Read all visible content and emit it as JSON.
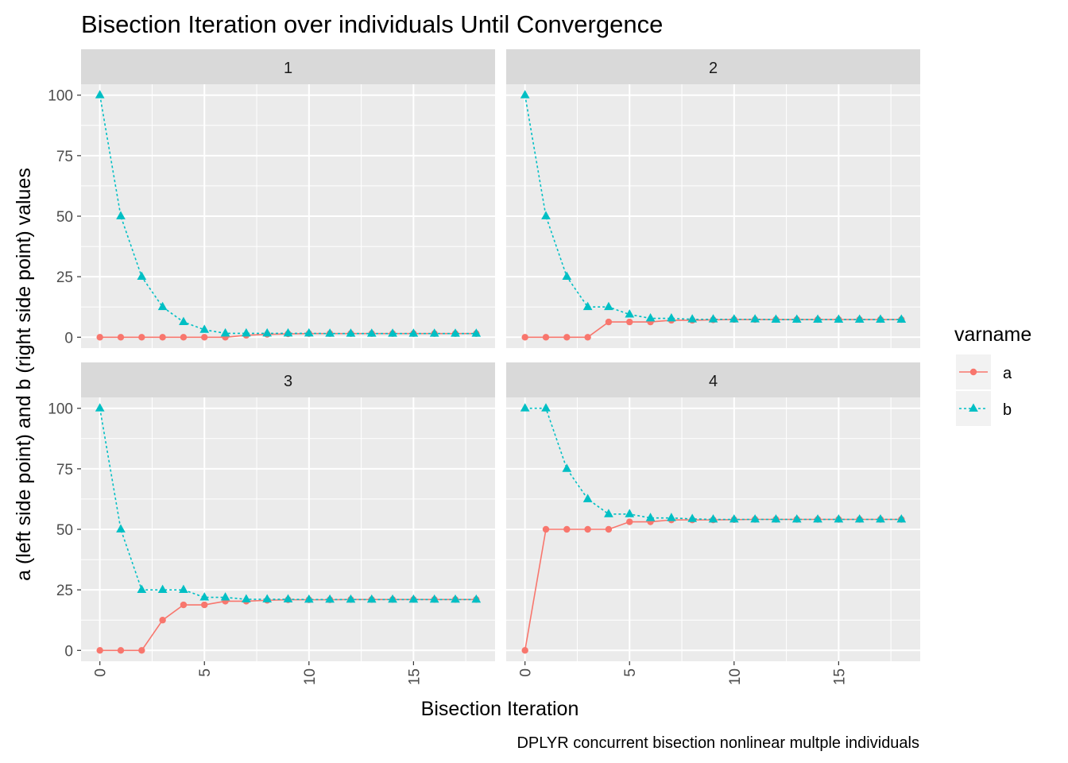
{
  "chart_data": {
    "type": "line",
    "title": "Bisection Iteration over individuals Until Convergence",
    "xlabel": "Bisection Iteration",
    "ylabel": "a (left side point) and b (right side point) values",
    "caption": "DPLYR concurrent bisection nonlinear multple individuals",
    "xlim": [
      -0.9,
      18.9
    ],
    "ylim": [
      -4.5,
      104.5
    ],
    "x_ticks": [
      0,
      5,
      10,
      15
    ],
    "y_ticks": [
      0,
      25,
      50,
      75,
      100
    ],
    "x": [
      0,
      1,
      2,
      3,
      4,
      5,
      6,
      7,
      8,
      9,
      10,
      11,
      12,
      13,
      14,
      15,
      16,
      17,
      18
    ],
    "legend": {
      "title": "varname",
      "position": "right",
      "entries": [
        {
          "name": "a",
          "color": "#F8766D",
          "linetype": "solid",
          "shape": "circle"
        },
        {
          "name": "b",
          "color": "#00BFC4",
          "linetype": "dotted",
          "shape": "triangle"
        }
      ]
    },
    "grid": true,
    "panels": [
      {
        "label": "1",
        "series": [
          {
            "name": "a",
            "values": [
              0,
              0,
              0,
              0,
              0,
              0,
              0,
              0.8,
              1.2,
              1.4,
              1.5,
              1.5,
              1.5,
              1.5,
              1.5,
              1.5,
              1.5,
              1.5,
              1.5
            ]
          },
          {
            "name": "b",
            "values": [
              100,
              50,
              25,
              12.5,
              6.3,
              3.1,
              1.6,
              1.6,
              1.6,
              1.6,
              1.6,
              1.5,
              1.5,
              1.5,
              1.5,
              1.5,
              1.5,
              1.5,
              1.5
            ]
          }
        ]
      },
      {
        "label": "2",
        "series": [
          {
            "name": "a",
            "values": [
              0,
              0,
              0,
              0,
              6.3,
              6.3,
              6.3,
              7.0,
              7.0,
              7.2,
              7.3,
              7.3,
              7.3,
              7.3,
              7.3,
              7.3,
              7.3,
              7.3,
              7.3
            ]
          },
          {
            "name": "b",
            "values": [
              100,
              50,
              25,
              12.5,
              12.5,
              9.4,
              7.8,
              7.8,
              7.4,
              7.4,
              7.4,
              7.4,
              7.3,
              7.3,
              7.3,
              7.3,
              7.3,
              7.3,
              7.3
            ]
          }
        ]
      },
      {
        "label": "3",
        "series": [
          {
            "name": "a",
            "values": [
              0,
              0,
              0,
              12.5,
              18.8,
              18.8,
              20.3,
              20.3,
              20.7,
              20.9,
              20.9,
              20.9,
              21.0,
              21.0,
              21.0,
              21.0,
              21.0,
              21.0,
              21.0
            ]
          },
          {
            "name": "b",
            "values": [
              100,
              50,
              25,
              25,
              25,
              21.9,
              21.9,
              21.1,
              21.1,
              21.1,
              21.0,
              21.0,
              21.0,
              21.0,
              21.0,
              21.0,
              21.0,
              21.0,
              21.0
            ]
          }
        ]
      },
      {
        "label": "4",
        "series": [
          {
            "name": "a",
            "values": [
              0,
              50,
              50,
              50,
              50,
              53.1,
              53.1,
              53.9,
              53.9,
              53.9,
              54.0,
              54.1,
              54.1,
              54.1,
              54.1,
              54.1,
              54.1,
              54.1,
              54.1
            ]
          },
          {
            "name": "b",
            "values": [
              100,
              100,
              75,
              62.5,
              56.3,
              56.3,
              54.7,
              54.7,
              54.3,
              54.1,
              54.1,
              54.1,
              54.1,
              54.1,
              54.1,
              54.1,
              54.1,
              54.1,
              54.1
            ]
          }
        ]
      }
    ]
  }
}
